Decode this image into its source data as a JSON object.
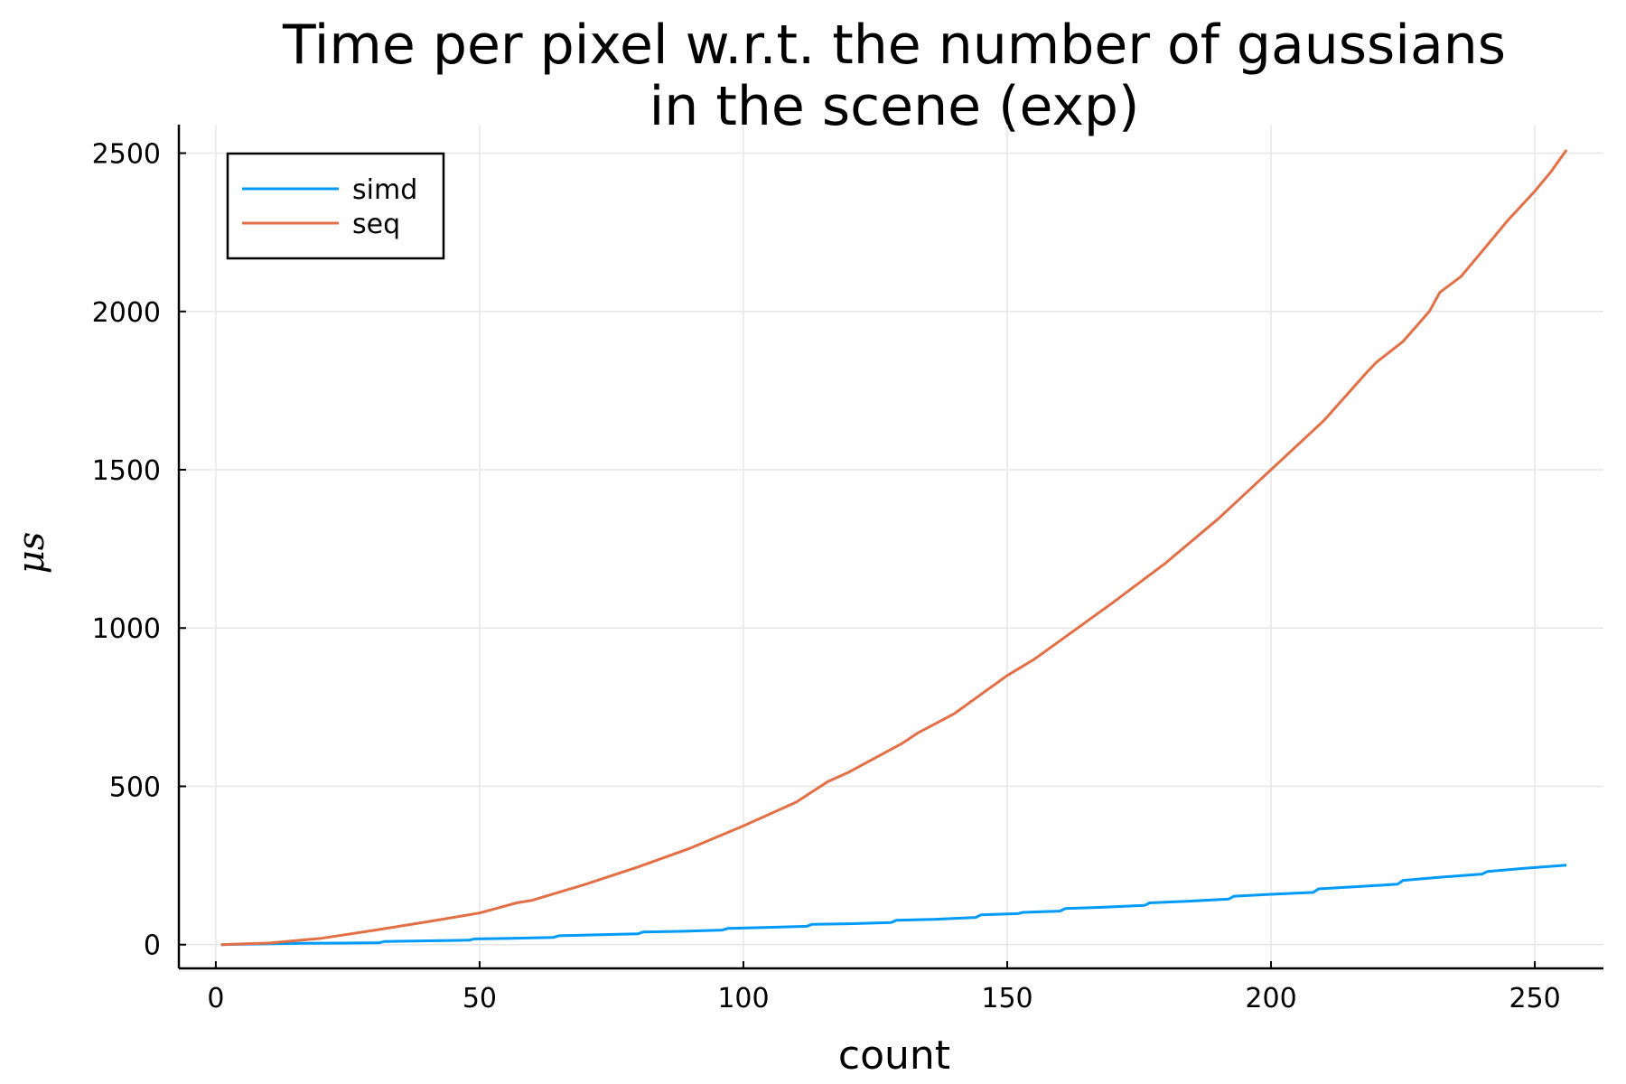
{
  "chart_data": {
    "type": "line",
    "title_lines": [
      "Time per pixel w.r.t. the number of gaussians",
      "in the scene (exp)"
    ],
    "xlabel": "count",
    "ylabel": "μs",
    "xlim": [
      -7,
      263
    ],
    "ylim": [
      -75,
      2590
    ],
    "xticks": [
      0,
      50,
      100,
      150,
      200,
      250
    ],
    "yticks": [
      0,
      500,
      1000,
      1500,
      2000,
      2500
    ],
    "grid": true,
    "legend_position": "top-left",
    "series": [
      {
        "name": "simd",
        "color": "#009af9",
        "x": [
          1,
          8,
          16,
          24,
          31,
          32,
          40,
          48,
          49,
          56,
          64,
          65,
          72,
          80,
          81,
          88,
          96,
          97,
          104,
          112,
          113,
          120,
          128,
          129,
          136,
          144,
          145,
          152,
          153,
          160,
          161,
          168,
          176,
          177,
          184,
          192,
          193,
          200,
          208,
          209,
          216,
          224,
          225,
          232,
          240,
          241,
          248,
          256
        ],
        "y": [
          0,
          2,
          4,
          5,
          6,
          10,
          12,
          14,
          18,
          20,
          23,
          28,
          31,
          34,
          40,
          42,
          46,
          51,
          54,
          58,
          64,
          66,
          70,
          77,
          80,
          86,
          94,
          98,
          102,
          106,
          114,
          118,
          124,
          132,
          137,
          144,
          153,
          159,
          165,
          176,
          183,
          191,
          203,
          213,
          223,
          231,
          241,
          251
        ]
      },
      {
        "name": "seq",
        "color": "#e26f46",
        "x": [
          1,
          10,
          20,
          30,
          40,
          50,
          57,
          60,
          70,
          80,
          90,
          100,
          110,
          116,
          120,
          130,
          133,
          140,
          145,
          150,
          155,
          160,
          170,
          180,
          190,
          200,
          210,
          218,
          220,
          225,
          230,
          232,
          236,
          240,
          245,
          250,
          253,
          256
        ],
        "y": [
          0,
          5,
          20,
          45,
          72,
          100,
          132,
          140,
          190,
          245,
          305,
          375,
          450,
          515,
          545,
          635,
          668,
          730,
          790,
          850,
          900,
          960,
          1080,
          1205,
          1345,
          1500,
          1655,
          1805,
          1840,
          1905,
          2000,
          2060,
          2110,
          2190,
          2290,
          2380,
          2440,
          2510
        ]
      }
    ]
  }
}
